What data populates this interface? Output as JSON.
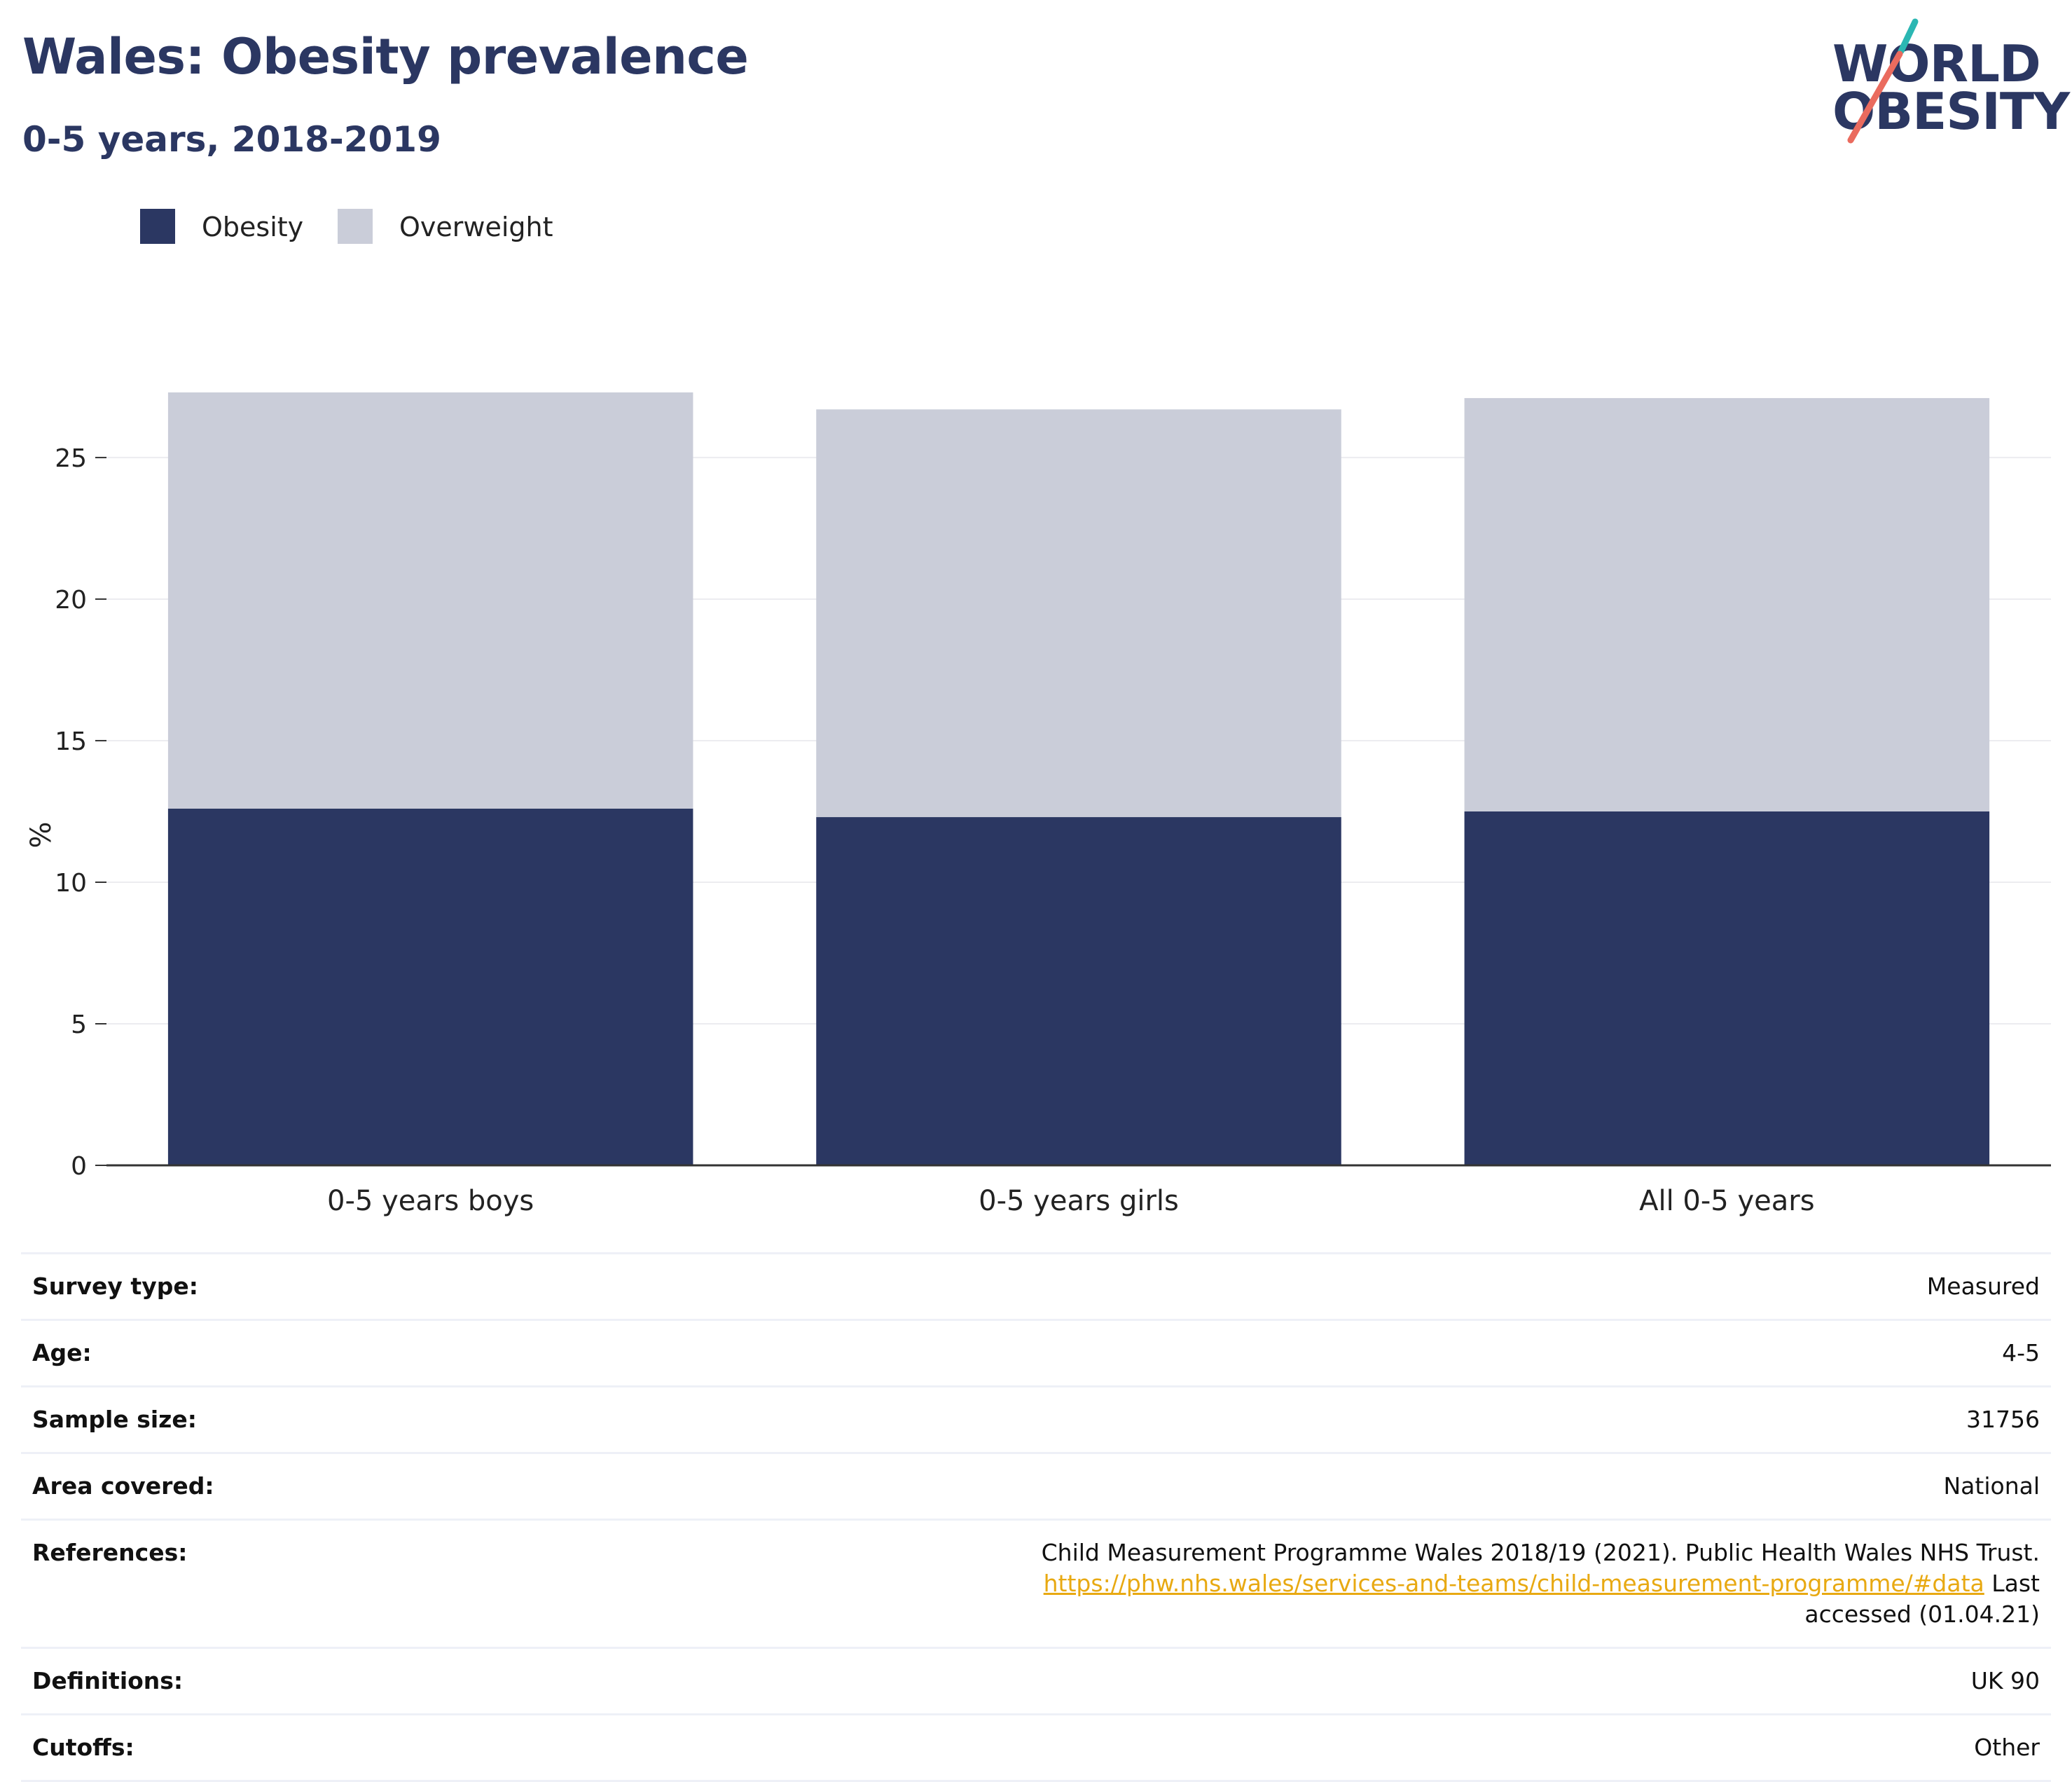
{
  "header": {
    "title": "Wales: Obesity prevalence",
    "subtitle": "0-5 years, 2018-2019"
  },
  "logo": {
    "line1": "WORLD",
    "line2": "OBESITY",
    "accent_teal": "#2bb7b3",
    "accent_coral": "#ea6b5e",
    "text_color": "#2b3762"
  },
  "colors": {
    "obesity": "#2b3762",
    "overweight": "#cacdd9",
    "link": "#e8a912"
  },
  "chart_data": {
    "type": "bar",
    "stacked": true,
    "categories": [
      "0-5 years boys",
      "0-5 years girls",
      "All 0-5 years"
    ],
    "series": [
      {
        "name": "Obesity",
        "values": [
          12.6,
          12.3,
          12.5
        ],
        "color": "#2b3762"
      },
      {
        "name": "Overweight",
        "values": [
          14.7,
          14.4,
          14.6
        ],
        "color": "#cacdd9"
      }
    ],
    "ylabel": "%",
    "xlabel": "",
    "ylim": [
      0,
      27.3
    ],
    "yticks": [
      0,
      5,
      10,
      15,
      20,
      25
    ],
    "grid": true,
    "legend_position": "top-left"
  },
  "info": {
    "rows": [
      {
        "key": "Survey type:",
        "value": "Measured"
      },
      {
        "key": "Age:",
        "value": "4-5"
      },
      {
        "key": "Sample size:",
        "value": "31756"
      },
      {
        "key": "Area covered:",
        "value": "National"
      },
      {
        "key": "References:",
        "value": "Child Measurement Programme Wales 2018/19 (2021). Public Health Wales NHS Trust. ",
        "link": "https://phw.nhs.wales/services-and-teams/child-measurement-programme/#data",
        "after": " Last accessed (01.04.21)"
      },
      {
        "key": "Definitions:",
        "value": "UK 90"
      },
      {
        "key": "Cutoffs:",
        "value": "Other"
      }
    ]
  }
}
